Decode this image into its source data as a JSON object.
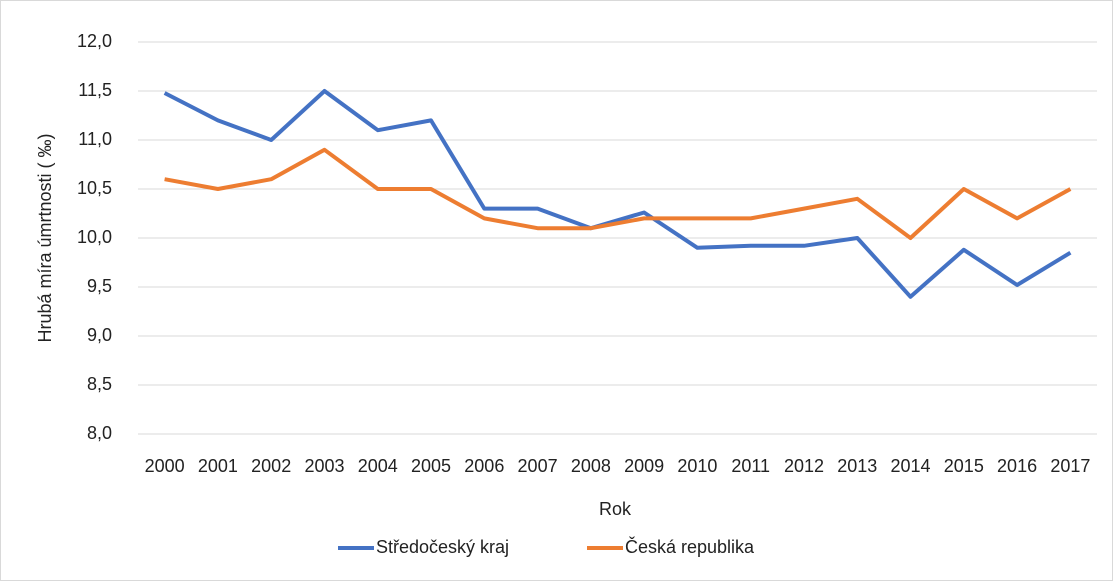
{
  "chart_data": {
    "type": "line",
    "x_label": "Rok",
    "y_label": "Hrubá míra úmrtnosti ( ‰)",
    "categories": [
      "2000",
      "2001",
      "2002",
      "2003",
      "2004",
      "2005",
      "2006",
      "2007",
      "2008",
      "2009",
      "2010",
      "2011",
      "2012",
      "2013",
      "2014",
      "2015",
      "2016",
      "2017"
    ],
    "series": [
      {
        "name": "Středočeský kraj",
        "color": "#4472c4",
        "values": [
          11.48,
          11.2,
          11.0,
          11.5,
          11.1,
          11.2,
          10.3,
          10.3,
          10.1,
          10.26,
          9.9,
          9.92,
          9.92,
          10.0,
          9.4,
          9.88,
          9.52,
          9.85
        ]
      },
      {
        "name": "Česká republika",
        "color": "#ed7d31",
        "values": [
          10.6,
          10.5,
          10.6,
          10.9,
          10.5,
          10.5,
          10.2,
          10.1,
          10.1,
          10.2,
          10.2,
          10.2,
          10.3,
          10.4,
          10.0,
          10.5,
          10.2,
          10.5
        ]
      }
    ],
    "ylim": [
      8.0,
      12.0
    ],
    "yticks": [
      {
        "value": 8.0,
        "label": "8,0"
      },
      {
        "value": 8.5,
        "label": "8,5"
      },
      {
        "value": 9.0,
        "label": "9,0"
      },
      {
        "value": 9.5,
        "label": "9,5"
      },
      {
        "value": 10.0,
        "label": "10,0"
      },
      {
        "value": 10.5,
        "label": "10,5"
      },
      {
        "value": 11.0,
        "label": "11,0"
      },
      {
        "value": 11.5,
        "label": "11,5"
      },
      {
        "value": 12.0,
        "label": "12,0"
      }
    ],
    "grid": true,
    "legend": "bottom"
  }
}
